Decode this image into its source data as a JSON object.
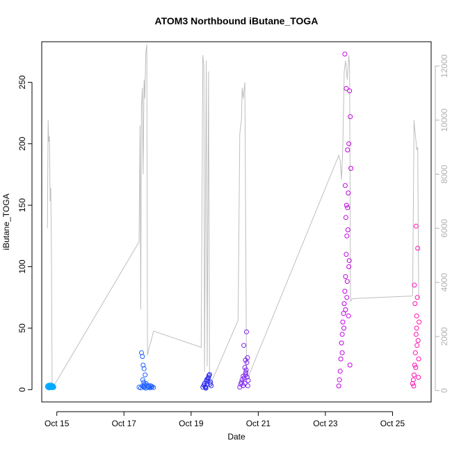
{
  "chart_data": {
    "type": "scatter",
    "title": "ATOM3 Northbound iButane_TOGA",
    "xlabel": "Date",
    "ylabel": "iButane_TOGA",
    "x_ticks": [
      "Oct 15",
      "Oct 17",
      "Oct 19",
      "Oct 21",
      "Oct 23",
      "Oct 25"
    ],
    "x_tick_values": [
      15,
      17,
      19,
      21,
      23,
      25
    ],
    "xlim": [
      14.55,
      26.15
    ],
    "ylim": [
      -10,
      283
    ],
    "y_ticks": [
      0,
      50,
      100,
      150,
      200,
      250
    ],
    "y2lim": [
      -420,
      12900
    ],
    "y2_ticks": [
      0,
      2000,
      4000,
      6000,
      8000,
      10000,
      12000
    ],
    "grid": false,
    "legend": "none",
    "colors": {
      "altitude_line": "#bebebe",
      "point_palette": [
        "#00aaff",
        "#1f5fff",
        "#2a2aee",
        "#7a1ff0",
        "#c000e0",
        "#ff10b0"
      ]
    },
    "series": [
      {
        "name": "",
        "kind": "points",
        "segments": [
          {
            "color": "#00aaff",
            "x": [
              14.72,
              14.73,
              14.74,
              14.75,
              14.76,
              14.77,
              14.78,
              14.79,
              14.8,
              14.81,
              14.82,
              14.83,
              14.84,
              14.85,
              14.86,
              14.87,
              14.88,
              14.89,
              14.9,
              14.91,
              14.76,
              14.82,
              14.88
            ],
            "y": [
              2.5,
              3.1,
              1.8,
              2.2,
              3.6,
              2.0,
              1.5,
              2.8,
              3.2,
              1.9,
              2.4,
              3.0,
              1.7,
              2.6,
              2.1,
              3.3,
              1.6,
              2.9,
              2.3,
              2.0,
              1.4,
              3.8,
              2.7
            ]
          },
          {
            "color": "#1f5fff",
            "x": [
              17.45,
              17.5,
              17.55,
              17.58,
              17.6,
              17.62,
              17.65,
              17.68,
              17.7,
              17.72,
              17.75,
              17.78,
              17.8,
              17.84,
              17.88,
              17.52,
              17.55,
              17.57,
              17.6,
              17.63,
              17.56,
              17.59,
              17.61,
              17.66,
              17.74,
              17.82
            ],
            "y": [
              2.0,
              1.5,
              3.0,
              2.5,
              1.8,
              2.8,
              1.2,
              3.5,
              2.2,
              1.9,
              2.6,
              1.4,
              3.1,
              2.4,
              1.7,
              30,
              27,
              20,
              17,
              12,
              8,
              6,
              4,
              5,
              3.2,
              2.1
            ]
          },
          {
            "color": "#2a2aee",
            "x": [
              19.35,
              19.38,
              19.4,
              19.43,
              19.45,
              19.48,
              19.5,
              19.53,
              19.55,
              19.58,
              19.6,
              19.42,
              19.47,
              19.52,
              19.57,
              19.44,
              19.5
            ],
            "y": [
              2.0,
              3.5,
              5.0,
              1.8,
              7.0,
              4.2,
              9.0,
              11.5,
              12.3,
              6.1,
              3.2,
              2.5,
              8.3,
              10.1,
              4.5,
              1.2,
              6.8
            ]
          },
          {
            "color": "#7a1ff0",
            "x": [
              20.45,
              20.48,
              20.5,
              20.52,
              20.55,
              20.58,
              20.6,
              20.62,
              20.64,
              20.66,
              20.68,
              20.7,
              20.55,
              20.6,
              20.62,
              20.65,
              20.57,
              20.63,
              20.67,
              20.69
            ],
            "y": [
              2.0,
              4.5,
              6.0,
              8.2,
              3.3,
              9.5,
              5.1,
              12.0,
              16.0,
              22.0,
              26.0,
              7.5,
              11.0,
              18.0,
              24.0,
              47.0,
              36.0,
              14.0,
              10.2,
              3.1
            ]
          },
          {
            "color": "#c000e0",
            "x": [
              23.4,
              23.42,
              23.44,
              23.46,
              23.48,
              23.5,
              23.52,
              23.54,
              23.56,
              23.58,
              23.6,
              23.62,
              23.64,
              23.66,
              23.68,
              23.7,
              23.72,
              23.74,
              23.76,
              23.5,
              23.55,
              23.6,
              23.65,
              23.7,
              23.58,
              23.62,
              23.66,
              23.59,
              23.63,
              23.67,
              23.71,
              23.61,
              23.64,
              23.69,
              23.73
            ],
            "y": [
              3.0,
              8.0,
              15.0,
              25.0,
              38.0,
              45.0,
              55.0,
              62.0,
              70.0,
              80.0,
              92.0,
              110.0,
              125.0,
              148.0,
              160.0,
              200.0,
              243.0,
              222.0,
              180.0,
              30.0,
              50.0,
              65.0,
              88.0,
              100.0,
              273.0,
              245.0,
              195.0,
              166.0,
              150.0,
              130.0,
              105.0,
              140.0,
              75.0,
              60.0,
              20.0
            ]
          },
          {
            "color": "#ff10b0",
            "x": [
              25.6,
              25.62,
              25.64,
              25.66,
              25.68,
              25.7,
              25.72,
              25.74,
              25.76,
              25.78,
              25.65,
              25.7,
              25.75,
              25.67,
              25.72,
              25.77,
              25.63,
              25.69,
              25.73,
              25.79
            ],
            "y": [
              5.0,
              8.0,
              12.0,
              20.0,
              30.0,
              45.0,
              60.0,
              75.0,
              40.0,
              25.0,
              85.0,
              133.0,
              115.0,
              70.0,
              50.0,
              10.0,
              3.0,
              18.0,
              36.0,
              55.0
            ]
          }
        ]
      },
      {
        "name": "",
        "kind": "altitude-line",
        "axis": "right",
        "x": [
          14.72,
          14.74,
          14.76,
          14.78,
          14.8,
          14.82,
          14.84,
          14.86,
          14.88,
          14.9,
          17.45,
          17.48,
          17.5,
          17.52,
          17.55,
          17.57,
          17.6,
          17.62,
          17.65,
          17.68,
          17.7,
          17.75,
          17.8,
          17.84,
          17.88,
          19.3,
          19.35,
          19.38,
          19.4,
          19.45,
          19.48,
          19.52,
          19.55,
          19.6,
          20.4,
          20.45,
          20.5,
          20.52,
          20.55,
          20.6,
          20.65,
          20.7,
          23.4,
          23.44,
          23.48,
          23.52,
          23.56,
          23.6,
          23.65,
          23.7,
          23.72,
          23.75,
          23.8,
          25.6,
          25.64,
          25.66,
          25.7,
          25.72,
          25.75,
          25.78
        ],
        "y": [
          6000,
          10000,
          9200,
          9400,
          7000,
          7500,
          5000,
          200,
          100,
          150,
          5500,
          9800,
          3000,
          10500,
          11200,
          8000,
          11500,
          10800,
          12500,
          12800,
          1300,
          1600,
          1800,
          2000,
          2200,
          1600,
          12400,
          12000,
          700,
          12200,
          900,
          11800,
          600,
          300,
          2600,
          9500,
          10000,
          11200,
          10800,
          11400,
          700,
          500,
          8700,
          8500,
          7800,
          9000,
          11800,
          12200,
          11500,
          12400,
          12000,
          3300,
          3400,
          3500,
          10000,
          9700,
          9200,
          8900,
          9000,
          3400
        ]
      }
    ]
  }
}
